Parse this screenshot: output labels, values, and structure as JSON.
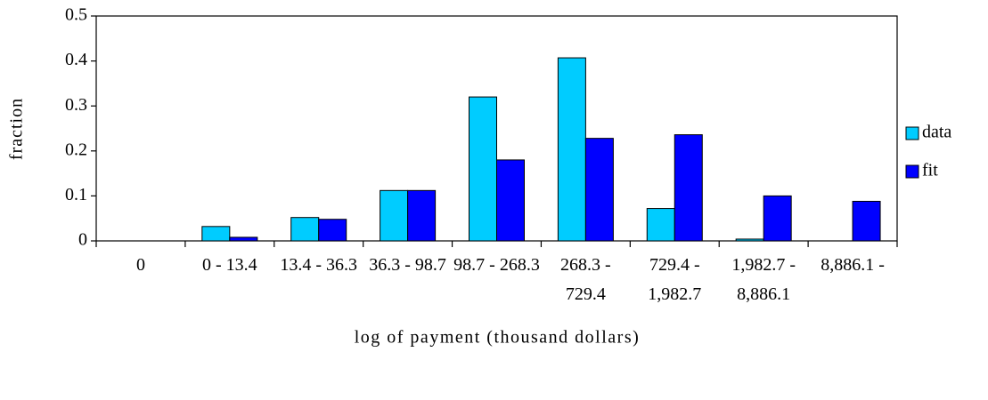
{
  "chart_data": {
    "type": "bar",
    "x_label": "log of payment (thousand dollars)",
    "y_label": "fraction",
    "categories": [
      "0",
      "0 - 13.4",
      "13.4 - 36.3",
      "36.3 - 98.7",
      "98.7 - 268.3",
      "268.3 - 729.4",
      "729.4 - 1,982.7",
      "1,982.7 - 8,886.1",
      "8,886.1 -"
    ],
    "series": [
      {
        "name": "data",
        "color": "#00ccff",
        "values": [
          0,
          0.032,
          0.052,
          0.112,
          0.32,
          0.407,
          0.072,
          0.004,
          0
        ]
      },
      {
        "name": "fit",
        "color": "#0000ff",
        "values": [
          0,
          0.008,
          0.048,
          0.112,
          0.18,
          0.228,
          0.236,
          0.1,
          0.088
        ]
      }
    ],
    "ylim": [
      0,
      0.5
    ],
    "yticks": [
      0,
      0.1,
      0.2,
      0.3,
      0.4,
      0.5
    ],
    "grid": false,
    "legend": "right"
  }
}
